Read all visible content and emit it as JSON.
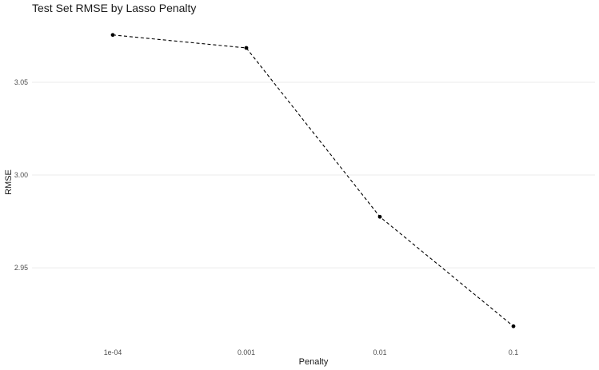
{
  "chart_data": {
    "type": "line",
    "title": "Test Set RMSE by Lasso Penalty",
    "xlabel": "Penalty",
    "ylabel": "RMSE",
    "x_scale": "log10",
    "categories": [
      "1e-04",
      "0.001",
      "0.01",
      "0.1"
    ],
    "x": [
      0.0001,
      0.001,
      0.01,
      0.1
    ],
    "series": [
      {
        "values": [
          3.0755,
          3.0685,
          2.9775,
          2.9185
        ]
      }
    ],
    "yticks": [
      {
        "value": 3.05,
        "label": "3.05"
      },
      {
        "value": 3.0,
        "label": "3.00"
      },
      {
        "value": 2.95,
        "label": "2.95"
      }
    ],
    "ylim": [
      2.91,
      3.084
    ],
    "line_style": "dashed",
    "line_color": "#000000",
    "point_color": "#000000",
    "grid": true,
    "legend": "none"
  }
}
